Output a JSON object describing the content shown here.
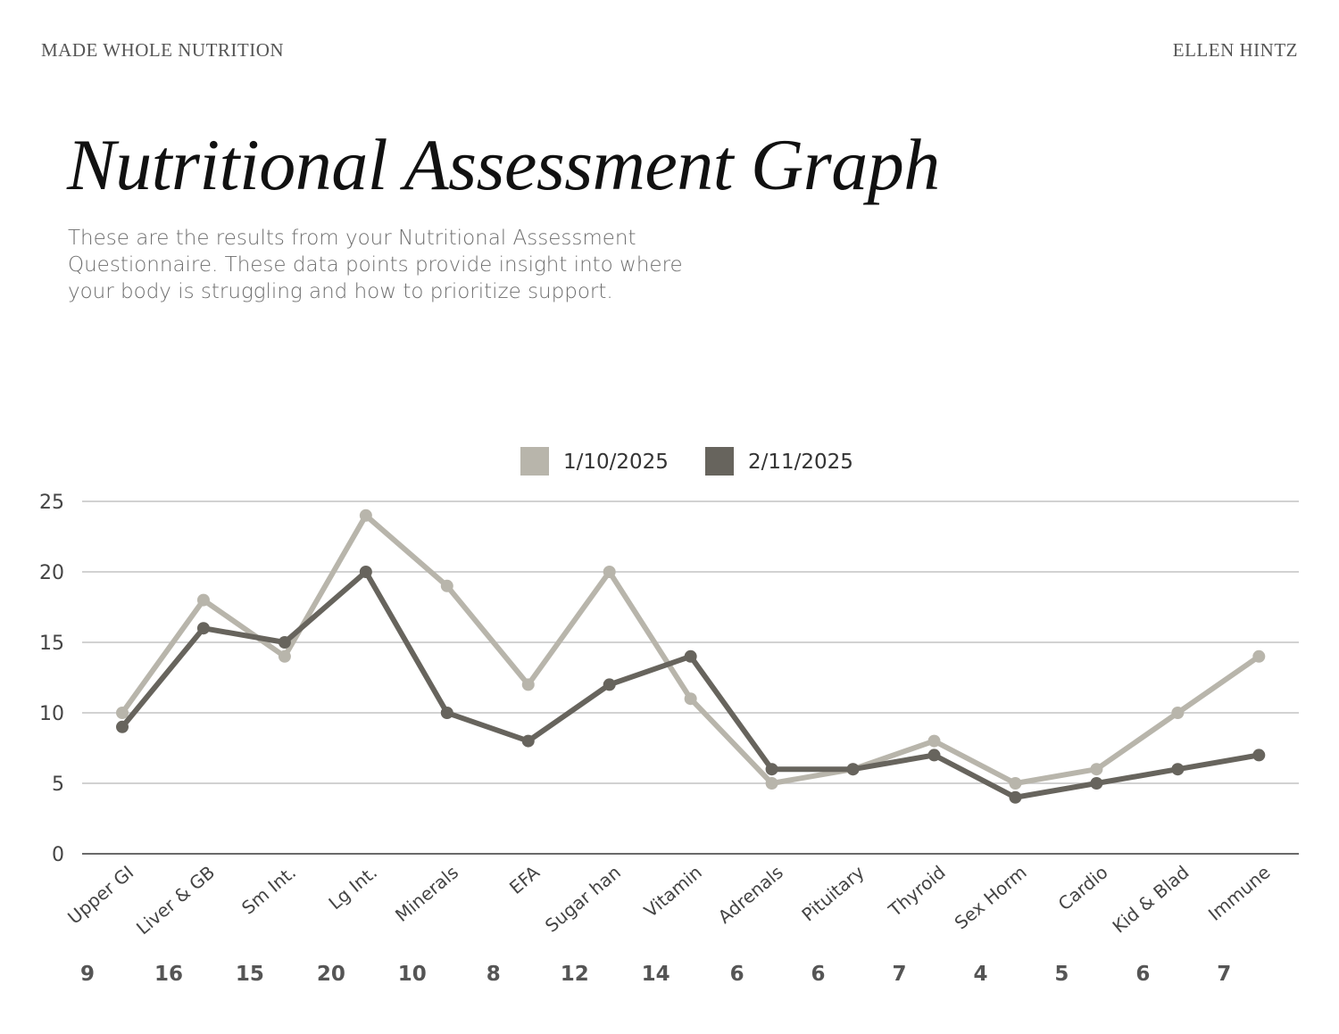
{
  "header": {
    "brand": "MADE WHOLE NUTRITION",
    "author": "ELLEN HINTZ"
  },
  "page": {
    "title": "Nutritional Assessment Graph",
    "intro": "These are the results from your Nutritional Assessment Questionnaire. These data points provide insight into where your body is struggling and how to prioritize support."
  },
  "chart_data": {
    "type": "line",
    "categories": [
      "Upper GI",
      "Liver & GB",
      "Sm Int.",
      "Lg Int.",
      "Minerals",
      "EFA",
      "Sugar han",
      "Vitamin",
      "Adrenals",
      "Pituitary",
      "Thyroid",
      "Sex Horm",
      "Cardio",
      "Kid & Blad",
      "Immune"
    ],
    "series": [
      {
        "name": "1/10/2025",
        "color": "#b8b5ab",
        "values": [
          10,
          18,
          14,
          24,
          19,
          12,
          20,
          11,
          5,
          6,
          8,
          5,
          6,
          10,
          14
        ]
      },
      {
        "name": "2/11/2025",
        "color": "#67645d",
        "values": [
          9,
          16,
          15,
          20,
          10,
          8,
          12,
          14,
          6,
          6,
          7,
          4,
          5,
          6,
          7
        ]
      }
    ],
    "ylim": [
      0,
      25
    ],
    "yticks": [
      0,
      5,
      10,
      15,
      20,
      25
    ],
    "grid": true,
    "legend_position": "top-center",
    "bottom_values": [
      "9",
      "16",
      "15",
      "20",
      "10",
      "8",
      "12",
      "14",
      "6",
      "6",
      "7",
      "4",
      "5",
      "6",
      "7"
    ]
  }
}
